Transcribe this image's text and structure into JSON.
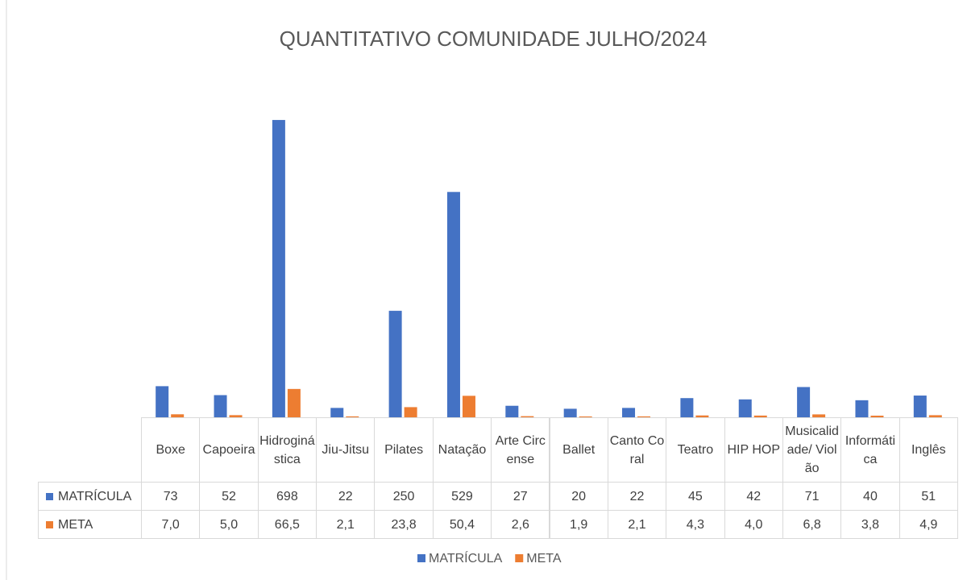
{
  "chart_data": {
    "type": "bar",
    "title": "QUANTITATIVO COMUNIDADE JULHO/2024",
    "categories": [
      "Boxe",
      "Capoeira",
      "Hidroginástica",
      "Jiu-Jitsu",
      "Pilates",
      "Natação",
      "Arte Circense",
      "Ballet",
      "Canto Coral",
      "Teatro",
      "HIP HOP",
      "Musicalidade/ Violão",
      "Informática",
      "Inglês"
    ],
    "series": [
      {
        "name": "MATRÍCULA",
        "color": "#4472c4",
        "values": [
          73,
          52,
          698,
          22,
          250,
          529,
          27,
          20,
          22,
          45,
          42,
          71,
          40,
          51
        ]
      },
      {
        "name": "META",
        "color": "#ed7d31",
        "values": [
          7.0,
          5.0,
          66.5,
          2.1,
          23.8,
          50.4,
          2.6,
          1.9,
          2.1,
          4.3,
          4.0,
          6.8,
          3.8,
          4.9
        ],
        "value_labels": [
          "7,0",
          "5,0",
          "66,5",
          "2,1",
          "23,8",
          "50,4",
          "2,6",
          "1,9",
          "2,1",
          "4,3",
          "4,0",
          "6,8",
          "3,8",
          "4,9"
        ]
      }
    ],
    "ylim": [
      0,
      800
    ],
    "grid": false,
    "legend": "bottom"
  }
}
